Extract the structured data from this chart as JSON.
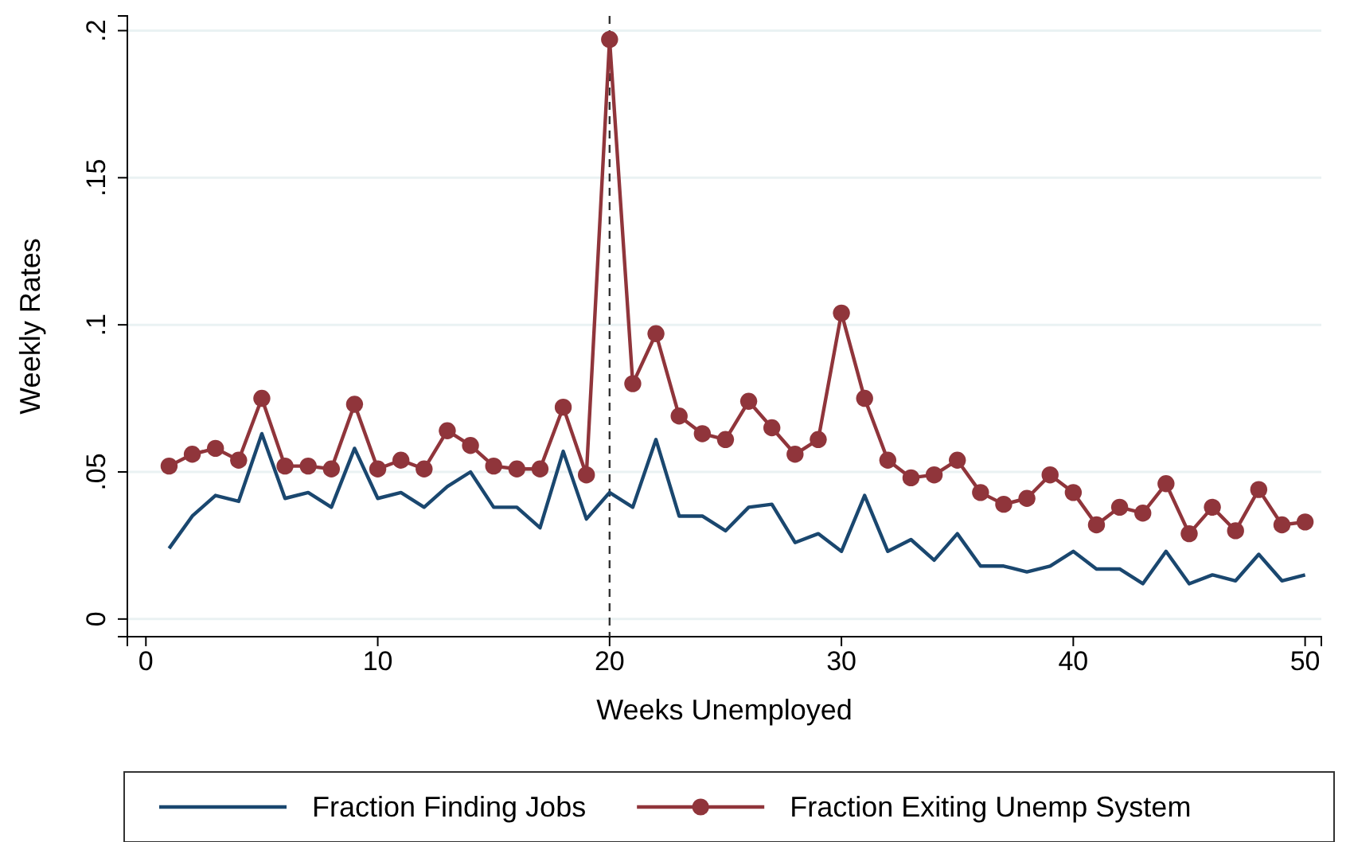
{
  "chart_data": {
    "type": "line",
    "xlabel": "Weeks Unemployed",
    "ylabel": "Weekly Rates",
    "x": [
      1,
      2,
      3,
      4,
      5,
      6,
      7,
      8,
      9,
      10,
      11,
      12,
      13,
      14,
      15,
      16,
      17,
      18,
      19,
      20,
      21,
      22,
      23,
      24,
      25,
      26,
      27,
      28,
      29,
      30,
      31,
      32,
      33,
      34,
      35,
      36,
      37,
      38,
      39,
      40,
      41,
      42,
      43,
      44,
      45,
      46,
      47,
      48,
      49,
      50
    ],
    "series": [
      {
        "name": "Fraction Finding Jobs",
        "color": "#1a476f",
        "marker": "none",
        "values": [
          0.024,
          0.035,
          0.042,
          0.04,
          0.063,
          0.041,
          0.043,
          0.038,
          0.058,
          0.041,
          0.043,
          0.038,
          0.045,
          0.05,
          0.038,
          0.038,
          0.031,
          0.057,
          0.034,
          0.043,
          0.038,
          0.061,
          0.035,
          0.035,
          0.03,
          0.038,
          0.039,
          0.026,
          0.029,
          0.023,
          0.042,
          0.023,
          0.027,
          0.02,
          0.029,
          0.018,
          0.018,
          0.016,
          0.018,
          0.023,
          0.017,
          0.017,
          0.012,
          0.023,
          0.012,
          0.015,
          0.013,
          0.022,
          0.013,
          0.015
        ]
      },
      {
        "name": "Fraction Exiting Unemp System",
        "color": "#90353b",
        "marker": "circle",
        "values": [
          0.052,
          0.056,
          0.058,
          0.054,
          0.075,
          0.052,
          0.052,
          0.051,
          0.073,
          0.051,
          0.054,
          0.051,
          0.064,
          0.059,
          0.052,
          0.051,
          0.051,
          0.072,
          0.049,
          0.197,
          0.08,
          0.097,
          0.069,
          0.063,
          0.061,
          0.074,
          0.065,
          0.056,
          0.061,
          0.104,
          0.075,
          0.054,
          0.048,
          0.049,
          0.054,
          0.043,
          0.039,
          0.041,
          0.049,
          0.043,
          0.032,
          0.038,
          0.036,
          0.046,
          0.029,
          0.038,
          0.03,
          0.044,
          0.032,
          0.033
        ]
      }
    ],
    "xlim": [
      -0.8,
      50.7
    ],
    "xticks": [
      0,
      10,
      20,
      30,
      40,
      50
    ],
    "ylim": [
      -0.006,
      0.205
    ],
    "yticks": [
      {
        "value": 0,
        "label": "0"
      },
      {
        "value": 0.05,
        "label": ".05"
      },
      {
        "value": 0.1,
        "label": ".1"
      },
      {
        "value": 0.15,
        "label": ".15"
      },
      {
        "value": 0.2,
        "label": ".2"
      }
    ],
    "grid": "y",
    "legend": "bottom",
    "line_style": "solid",
    "ref_lines": [
      {
        "axis": "x",
        "value": 20,
        "label": null,
        "color": "#333333",
        "line_style": "dashed"
      }
    ]
  }
}
